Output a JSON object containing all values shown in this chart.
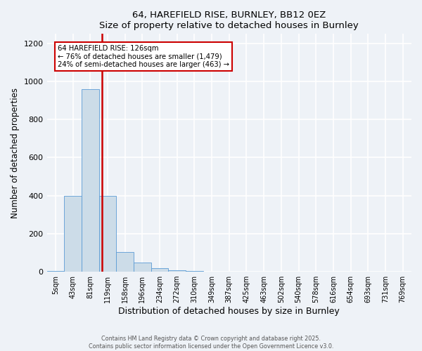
{
  "title": "64, HAREFIELD RISE, BURNLEY, BB12 0EZ",
  "subtitle": "Size of property relative to detached houses in Burnley",
  "xlabel": "Distribution of detached houses by size in Burnley",
  "ylabel": "Number of detached properties",
  "bin_labels": [
    "5sqm",
    "43sqm",
    "81sqm",
    "119sqm",
    "158sqm",
    "196sqm",
    "234sqm",
    "272sqm",
    "310sqm",
    "349sqm",
    "387sqm",
    "425sqm",
    "463sqm",
    "502sqm",
    "540sqm",
    "578sqm",
    "616sqm",
    "654sqm",
    "693sqm",
    "731sqm",
    "769sqm"
  ],
  "bar_values": [
    5,
    400,
    960,
    400,
    105,
    50,
    18,
    8,
    3,
    0,
    0,
    0,
    0,
    0,
    0,
    0,
    0,
    0,
    0,
    0,
    0
  ],
  "bar_color": "#ccdce8",
  "bar_edge_color": "#5b9bd5",
  "annotation_box_text": "64 HAREFIELD RISE: 126sqm\n← 76% of detached houses are smaller (1,479)\n24% of semi-detached houses are larger (463) →",
  "vline_color": "#cc0000",
  "box_edge_color": "#cc0000",
  "footer_line1": "Contains HM Land Registry data © Crown copyright and database right 2025.",
  "footer_line2": "Contains public sector information licensed under the Open Government Licence v3.0.",
  "ylim": [
    0,
    1250
  ],
  "yticks": [
    0,
    200,
    400,
    600,
    800,
    1000,
    1200
  ],
  "bg_color": "#eef2f7",
  "plot_bg_color": "#eef2f7",
  "grid_color": "#ffffff",
  "vline_x_bin": 3.18
}
